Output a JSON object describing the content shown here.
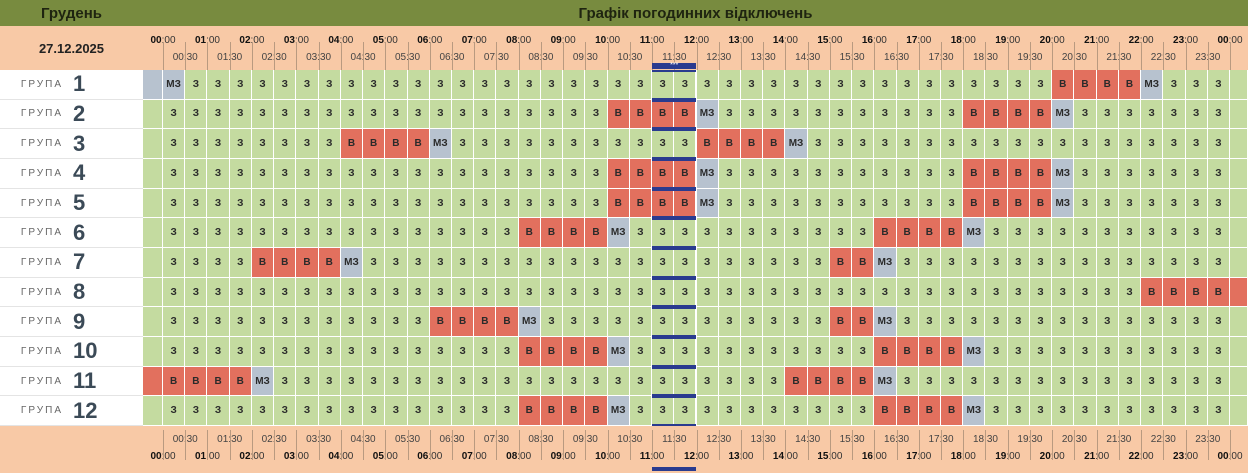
{
  "header": {
    "month": "Грудень",
    "title": "Графік погодинних відключень",
    "date": "27.12.2025",
    "now_marker": "***"
  },
  "hours": [
    "00:00",
    "01:00",
    "02:00",
    "03:00",
    "04:00",
    "05:00",
    "06:00",
    "07:00",
    "08:00",
    "09:00",
    "10:00",
    "11:00",
    "12:00",
    "13:00",
    "14:00",
    "15:00",
    "16:00",
    "17:00",
    "18:00",
    "19:00",
    "20:00",
    "21:00",
    "22:00",
    "23:00",
    "00:00"
  ],
  "half_hours": [
    "00:30",
    "01:30",
    "02:30",
    "03:30",
    "04:30",
    "05:30",
    "06:30",
    "07:30",
    "08:30",
    "09:30",
    "10:30",
    "11:30",
    "12:30",
    "13:30",
    "14:30",
    "15:30",
    "16:30",
    "17:30",
    "18:30",
    "19:30",
    "20:30",
    "21:30",
    "22:30",
    "23:30"
  ],
  "now_slot": 22,
  "legend_codes": {
    "z": "З",
    "v": "В",
    "m": "МЗ"
  },
  "colors": {
    "on": "#c4dba0",
    "off": "#e2705e",
    "maybe": "#b7c2cf",
    "header": "#788b3f",
    "band": "#f8c9a6",
    "now": "#2a3b8f"
  },
  "group_word": "ГРУПА",
  "groups": [
    {
      "num": "1",
      "outages": [
        [
          40,
          4
        ]
      ],
      "maybes": [
        0,
        44
      ]
    },
    {
      "num": "2",
      "outages": [
        [
          20,
          4
        ],
        [
          36,
          4
        ]
      ],
      "maybes": [
        24,
        40
      ]
    },
    {
      "num": "3",
      "outages": [
        [
          8,
          4
        ],
        [
          24,
          4
        ]
      ],
      "maybes": [
        12,
        28
      ]
    },
    {
      "num": "4",
      "outages": [
        [
          20,
          4
        ],
        [
          36,
          4
        ]
      ],
      "maybes": [
        24,
        40
      ]
    },
    {
      "num": "5",
      "outages": [
        [
          20,
          4
        ],
        [
          36,
          4
        ]
      ],
      "maybes": [
        24,
        40
      ]
    },
    {
      "num": "6",
      "outages": [
        [
          16,
          4
        ],
        [
          32,
          4
        ]
      ],
      "maybes": [
        20,
        36
      ]
    },
    {
      "num": "7",
      "outages": [
        [
          4,
          4
        ],
        [
          30,
          2
        ]
      ],
      "maybes": [
        8,
        32
      ]
    },
    {
      "num": "8",
      "outages": [
        [
          44,
          4
        ]
      ],
      "maybes": []
    },
    {
      "num": "9",
      "outages": [
        [
          12,
          4
        ],
        [
          30,
          2
        ]
      ],
      "maybes": [
        16,
        32
      ]
    },
    {
      "num": "10",
      "outages": [
        [
          16,
          4
        ],
        [
          32,
          4
        ]
      ],
      "maybes": [
        20,
        36
      ]
    },
    {
      "num": "11",
      "outages": [
        [
          0,
          4
        ],
        [
          28,
          4
        ]
      ],
      "maybes": [
        4,
        32
      ]
    },
    {
      "num": "12",
      "outages": [
        [
          16,
          4
        ],
        [
          32,
          4
        ]
      ],
      "maybes": [
        20,
        36
      ]
    }
  ]
}
